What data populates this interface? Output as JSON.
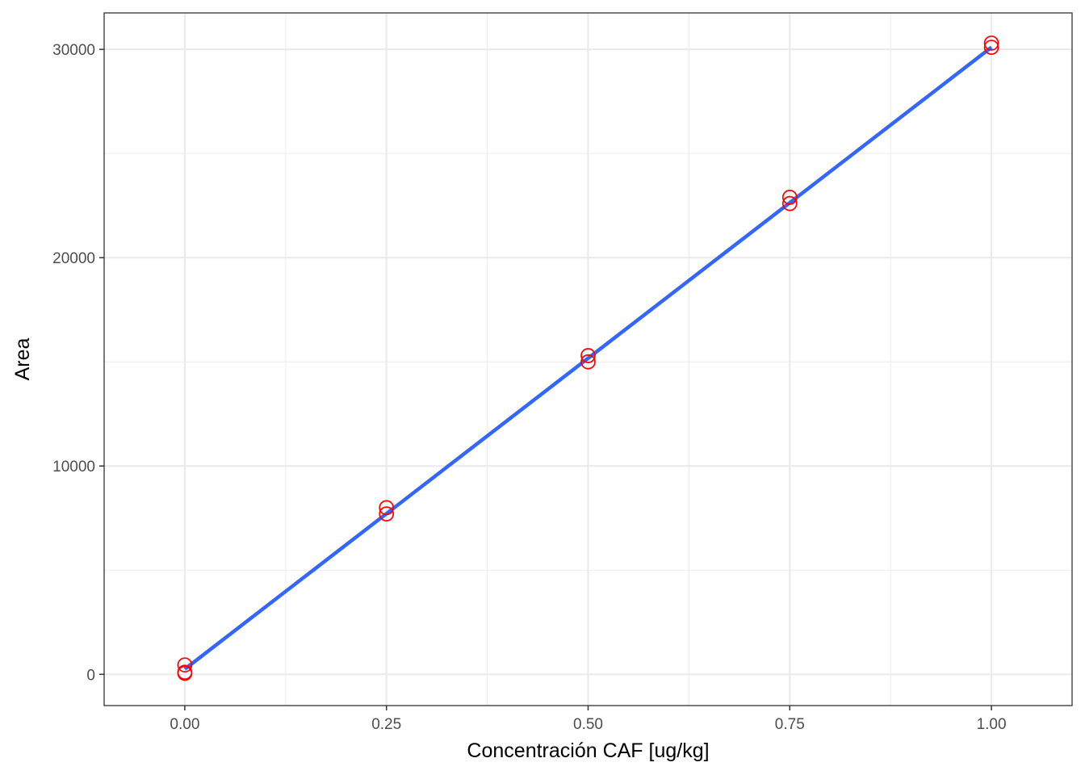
{
  "chart_data": {
    "type": "scatter",
    "xlabel": "Concentración CAF [ug/kg]",
    "ylabel": "Area",
    "xlim": [
      -0.1,
      1.1
    ],
    "ylim": [
      -1500,
      31750
    ],
    "x_ticks": [
      0.0,
      0.25,
      0.5,
      0.75,
      1.0
    ],
    "x_tick_labels": [
      "0.00",
      "0.25",
      "0.50",
      "0.75",
      "1.00"
    ],
    "y_ticks": [
      0,
      10000,
      20000,
      30000
    ],
    "y_tick_labels": [
      "0",
      "10000",
      "20000",
      "30000"
    ],
    "grid": true,
    "points": [
      {
        "x": 0.0,
        "y": 450
      },
      {
        "x": 0.0,
        "y": 100
      },
      {
        "x": 0.0,
        "y": 50
      },
      {
        "x": 0.25,
        "y": 8000
      },
      {
        "x": 0.25,
        "y": 7700
      },
      {
        "x": 0.5,
        "y": 15300
      },
      {
        "x": 0.5,
        "y": 15000
      },
      {
        "x": 0.75,
        "y": 22900
      },
      {
        "x": 0.75,
        "y": 22600
      },
      {
        "x": 1.0,
        "y": 30300
      },
      {
        "x": 1.0,
        "y": 30100
      }
    ],
    "fit_line": {
      "x": [
        0.0,
        1.0
      ],
      "y": [
        250,
        30100
      ]
    },
    "colors": {
      "points": "#ff0000",
      "fit_line": "#3366ff",
      "grid": "#ebebeb",
      "panel_border": "#333333"
    }
  }
}
